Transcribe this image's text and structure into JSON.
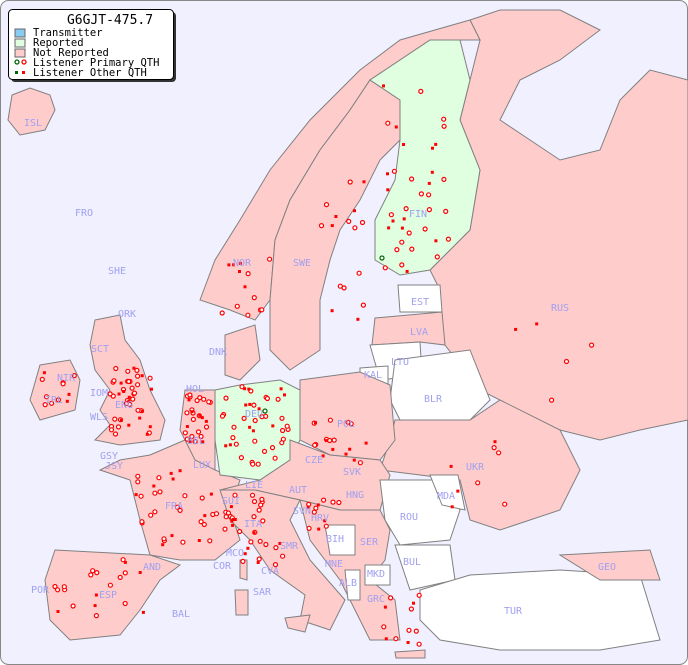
{
  "legend": {
    "title": "G6GJT-475.7",
    "items": [
      "Transmitter",
      "Reported",
      "Not Reported",
      "Listener Primary QTH",
      "Listener Other QTH"
    ],
    "colors": {
      "transmitter": "#88ccf0",
      "reported": "#e0ffe0",
      "not_reported": "#ffcccc",
      "listener_reported": "#006600",
      "listener": "#ff0000"
    }
  },
  "map": {
    "labels": [
      "ISL",
      "FRO",
      "SHE",
      "ORK",
      "NOR",
      "SWE",
      "FIN",
      "EST",
      "LVA",
      "LTU",
      "RUS",
      "DNK",
      "KAL",
      "BLR",
      "HOL",
      "DEU",
      "POL",
      "SCT",
      "NIR",
      "IRL",
      "IOM",
      "WLS",
      "ENG",
      "GSY",
      "JSY",
      "BEL",
      "LUX",
      "CZE",
      "SVK",
      "UKR",
      "FRA",
      "LIE",
      "SUI",
      "AUT",
      "HNG",
      "MDA",
      "SVN",
      "HRV",
      "ROU",
      "ITA",
      "BIH",
      "SER",
      "SMR",
      "MCO",
      "COR",
      "CVA",
      "MNE",
      "BUL",
      "GEO",
      "AND",
      "ALB",
      "MKD",
      "SAR",
      "GRC",
      "POR",
      "ESP",
      "BAL",
      "TUR"
    ]
  }
}
